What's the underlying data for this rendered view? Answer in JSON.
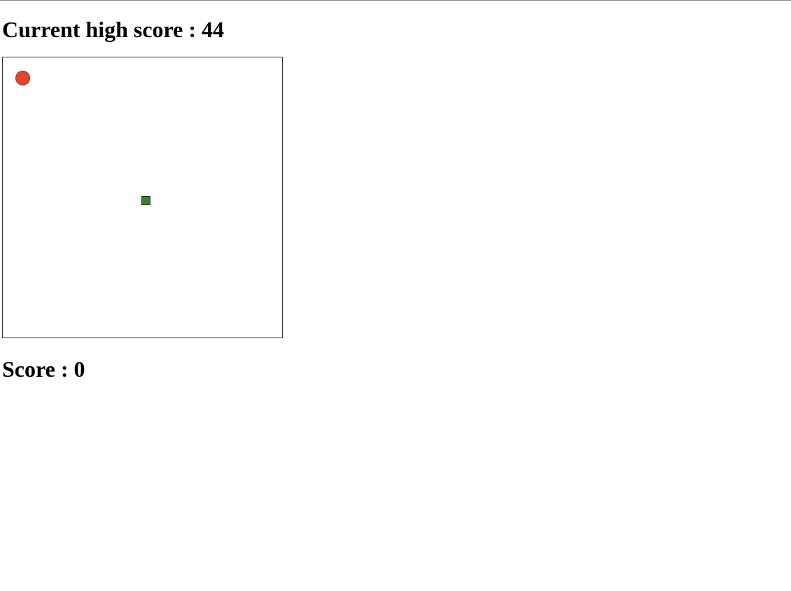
{
  "header": {
    "high_score_label": "Current high score : 44"
  },
  "game": {
    "food_color": "#e8442a",
    "snake_color": "#3e7f2e",
    "snake_length": 1
  },
  "footer": {
    "score_label": "Score : 0"
  }
}
